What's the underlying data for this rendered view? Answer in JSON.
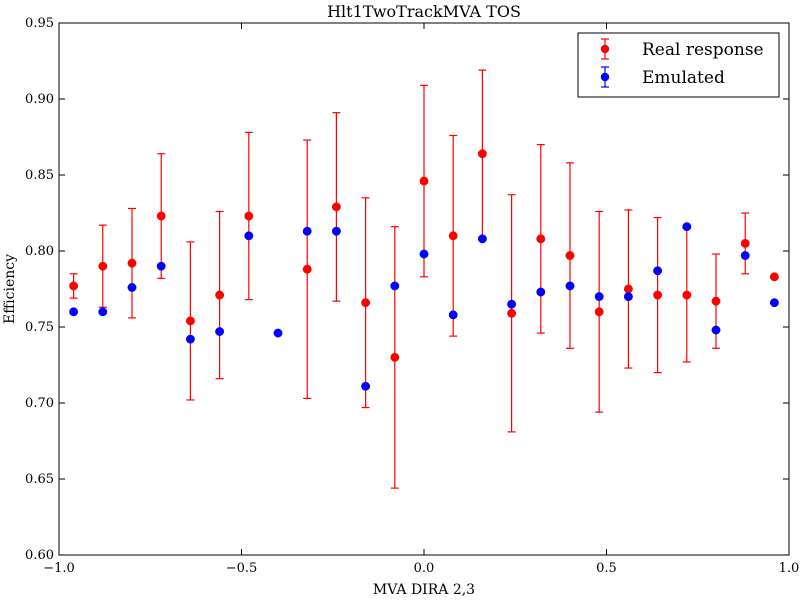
{
  "chart_data": {
    "type": "scatter",
    "title": "Hlt1TwoTrackMVA TOS",
    "xlabel": "MVA DIRA 2,3",
    "ylabel": "Efficiency",
    "xlim": [
      -1.0,
      1.0
    ],
    "ylim": [
      0.6,
      0.95
    ],
    "x_ticks": [
      -1.0,
      -0.5,
      0.0,
      0.5,
      1.0
    ],
    "x_tick_labels": [
      "−1.0",
      "−0.5",
      "0.0",
      "0.5",
      "1.0"
    ],
    "y_ticks": [
      0.6,
      0.65,
      0.7,
      0.75,
      0.8,
      0.85,
      0.9,
      0.95
    ],
    "y_tick_labels": [
      "0.60",
      "0.65",
      "0.70",
      "0.75",
      "0.80",
      "0.85",
      "0.90",
      "0.95"
    ],
    "grid": false,
    "legend_position": "top-right",
    "series": [
      {
        "name": "Real response",
        "color": "#ff0000",
        "x": [
          -0.96,
          -0.88,
          -0.8,
          -0.72,
          -0.64,
          -0.56,
          -0.48,
          -0.32,
          -0.24,
          -0.16,
          -0.08,
          0.0,
          0.08,
          0.16,
          0.24,
          0.32,
          0.4,
          0.48,
          0.56,
          0.64,
          0.72,
          0.8,
          0.88,
          0.96
        ],
        "y": [
          0.777,
          0.79,
          0.792,
          0.823,
          0.754,
          0.771,
          0.823,
          0.788,
          0.829,
          0.766,
          0.73,
          0.846,
          0.81,
          0.864,
          0.759,
          0.808,
          0.797,
          0.76,
          0.775,
          0.771,
          0.771,
          0.767,
          0.805,
          0.783
        ],
        "err": [
          0.008,
          0.027,
          0.036,
          0.041,
          0.052,
          0.055,
          0.055,
          0.085,
          0.062,
          0.069,
          0.086,
          0.063,
          0.066,
          0.055,
          0.078,
          0.062,
          0.061,
          0.066,
          0.052,
          0.051,
          0.044,
          0.031,
          0.02,
          0.0
        ]
      },
      {
        "name": "Emulated",
        "color": "#0000ff",
        "x": [
          -0.96,
          -0.88,
          -0.8,
          -0.72,
          -0.64,
          -0.56,
          -0.48,
          -0.4,
          -0.32,
          -0.24,
          -0.16,
          -0.08,
          0.0,
          0.08,
          0.16,
          0.24,
          0.32,
          0.4,
          0.48,
          0.56,
          0.64,
          0.72,
          0.8,
          0.88,
          0.96
        ],
        "y": [
          0.76,
          0.76,
          0.776,
          0.79,
          0.742,
          0.747,
          0.81,
          0.746,
          0.813,
          0.813,
          0.711,
          0.777,
          0.798,
          0.758,
          0.808,
          0.765,
          0.773,
          0.777,
          0.77,
          0.77,
          0.787,
          0.816,
          0.748,
          0.797,
          0.766
        ]
      }
    ]
  }
}
